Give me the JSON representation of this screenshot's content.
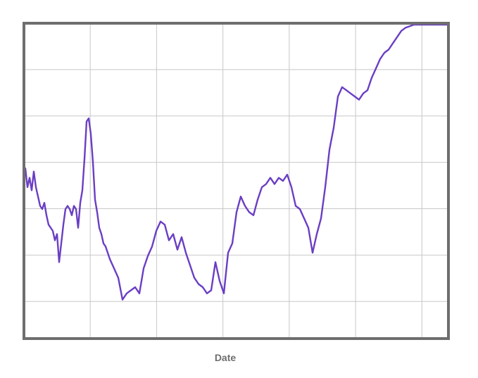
{
  "chart_data": {
    "type": "line",
    "title": "",
    "xlabel": "Date",
    "ylabel": "",
    "grid": true,
    "legend": "none",
    "xlim": [
      0,
      100
    ],
    "ylim": [
      0,
      100
    ],
    "colors": {
      "line": "#6a3ec4",
      "frame": "#6e6e6e",
      "grid": "#c8c8c8",
      "label": "#6e6e6e"
    },
    "series": [
      {
        "x": [
          0,
          0.5,
          1,
          1.5,
          2,
          2.5,
          3,
          3.5,
          4,
          4.5,
          5,
          5.5,
          6,
          6.5,
          7,
          7.5,
          8,
          8.5,
          9,
          9.5,
          10,
          10.5,
          11,
          11.5,
          12,
          12.5,
          13,
          13.5,
          14,
          14.5,
          15,
          15.5,
          16,
          16.5,
          17,
          17.5,
          18,
          18.5,
          19,
          19.5,
          20,
          21,
          22,
          23,
          24,
          25,
          26,
          27,
          28,
          29,
          30,
          31,
          32,
          33,
          34,
          35,
          36,
          37,
          38,
          39,
          40,
          41,
          42,
          43,
          44,
          45,
          46,
          47,
          48,
          49,
          50,
          51,
          52,
          53,
          54,
          55,
          56,
          57,
          58,
          59,
          60,
          61,
          62,
          63,
          64,
          65,
          66,
          67,
          68,
          69,
          70,
          71,
          72,
          73,
          74,
          75,
          76,
          77,
          78,
          79,
          80,
          81,
          82,
          83,
          84,
          85,
          86,
          87,
          88,
          89,
          90,
          91,
          92,
          93,
          94,
          95,
          96,
          97,
          98,
          99,
          100
        ],
        "y": [
          54,
          48,
          51,
          47,
          53,
          48,
          45,
          42,
          41,
          43,
          39,
          36,
          35,
          34,
          31,
          33,
          24,
          30,
          36,
          41,
          42,
          41,
          39,
          42,
          41,
          35,
          43,
          47,
          57,
          69,
          70,
          65,
          56,
          44,
          40,
          35,
          33,
          30,
          29,
          27,
          25,
          22,
          19,
          12,
          14,
          15,
          16,
          14,
          22,
          26,
          29,
          34,
          37,
          36,
          31,
          33,
          28,
          32,
          27,
          23,
          19,
          17,
          16,
          14,
          15,
          24,
          18,
          14,
          27,
          30,
          40,
          45,
          42,
          40,
          39,
          44,
          48,
          49,
          51,
          49,
          51,
          50,
          52,
          48,
          42,
          41,
          38,
          35,
          27,
          33,
          38,
          48,
          60,
          67,
          77,
          80,
          79,
          78,
          77,
          76,
          78,
          79,
          83,
          86,
          89,
          91,
          92,
          94,
          96,
          98,
          99,
          99.5,
          100,
          100,
          100,
          100,
          100,
          100,
          100,
          100,
          100
        ]
      }
    ]
  }
}
